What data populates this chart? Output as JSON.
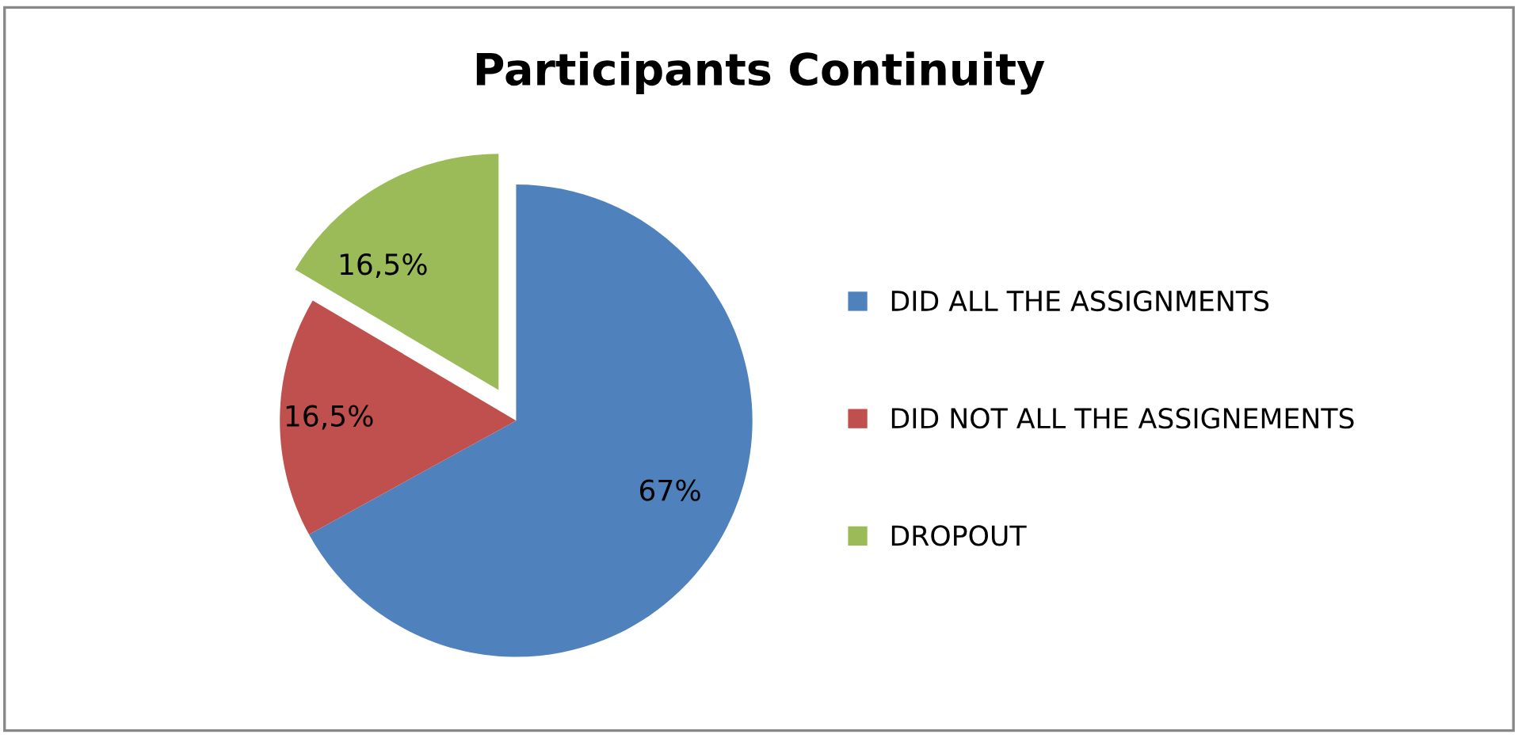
{
  "chart_data": {
    "type": "pie",
    "title": "Participants Continuity",
    "categories": [
      "DID ALL THE ASSIGNMENTS",
      "DID NOT ALL THE ASSIGNEMENTS",
      "DROPOUT"
    ],
    "values": [
      67,
      16.5,
      16.5
    ],
    "value_labels": [
      "67%",
      "16,5%",
      "16,5%"
    ],
    "colors": [
      "#4f81bd",
      "#c0504d",
      "#9bbb59"
    ],
    "legend": "right"
  }
}
